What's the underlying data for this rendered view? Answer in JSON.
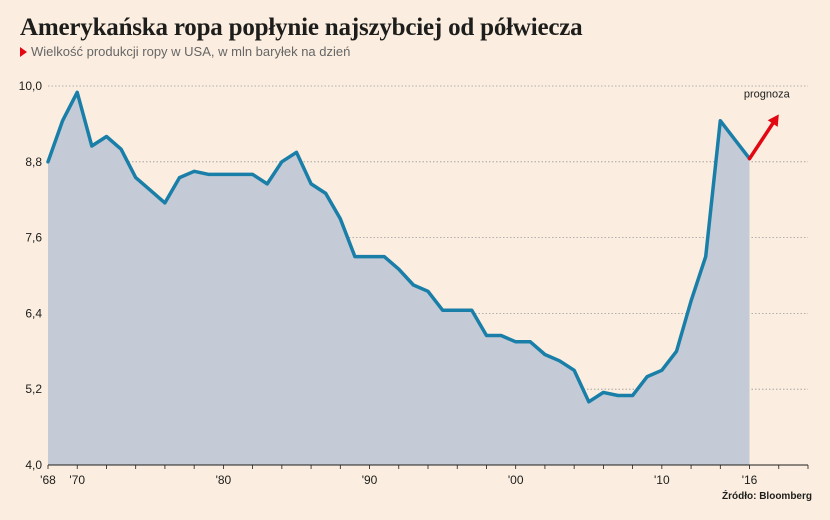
{
  "title": "Amerykańska ropa popłynie najszybciej od półwiecza",
  "subtitle": "Wielkość produkcji ropy w USA, w mln baryłek na dzień",
  "source": "Źródło: Bloomberg",
  "colors": {
    "background": "#fbeee0",
    "area": "#c4cbd6",
    "line": "#1a7fa8",
    "forecast": "#e30613",
    "marker": "#e30613"
  },
  "chart_data": {
    "type": "area",
    "ylabel": "Wielkość produkcji ropy w USA, w mln baryłek na dzień",
    "ylim": [
      4.0,
      10.0
    ],
    "xlim": [
      1968,
      2020
    ],
    "yticks": [
      "4,0",
      "5,2",
      "6,4",
      "7,6",
      "8,8",
      "10,0"
    ],
    "ytick_values": [
      4.0,
      5.2,
      6.4,
      7.6,
      8.8,
      10.0
    ],
    "xticks": [
      "'68",
      "'70",
      "'80",
      "'90",
      "'00",
      "'10",
      "'16"
    ],
    "xtick_values": [
      1968,
      1970,
      1980,
      1990,
      2000,
      2010,
      2016
    ],
    "grid": true,
    "series": [
      {
        "x": [
          1968,
          1969,
          1970,
          1971,
          1972,
          1973,
          1974,
          1975,
          1976,
          1977,
          1978,
          1979,
          1980,
          1981,
          1982,
          1983,
          1984,
          1985,
          1986,
          1987,
          1988,
          1989,
          1990,
          1991,
          1992,
          1993,
          1994,
          1995,
          1996,
          1997,
          1998,
          1999,
          2000,
          2001,
          2002,
          2003,
          2004,
          2005,
          2006,
          2007,
          2008,
          2009,
          2010,
          2011,
          2012,
          2013,
          2014,
          2015,
          2016
        ],
        "values": [
          8.8,
          9.45,
          9.9,
          9.05,
          9.2,
          9.0,
          8.55,
          8.35,
          8.15,
          8.55,
          8.65,
          8.6,
          8.6,
          8.6,
          8.6,
          8.45,
          8.8,
          8.95,
          8.45,
          8.3,
          7.9,
          7.3,
          7.3,
          7.3,
          7.1,
          6.85,
          6.75,
          6.45,
          6.45,
          6.45,
          6.05,
          6.05,
          5.95,
          5.95,
          5.75,
          5.65,
          5.5,
          5.0,
          5.15,
          5.1,
          5.1,
          5.4,
          5.5,
          5.8,
          6.6,
          7.3,
          9.45,
          9.15,
          8.85
        ]
      }
    ],
    "forecast": {
      "label": "prognoza",
      "x": [
        2016,
        2018
      ],
      "values": [
        8.85,
        9.55
      ]
    }
  }
}
